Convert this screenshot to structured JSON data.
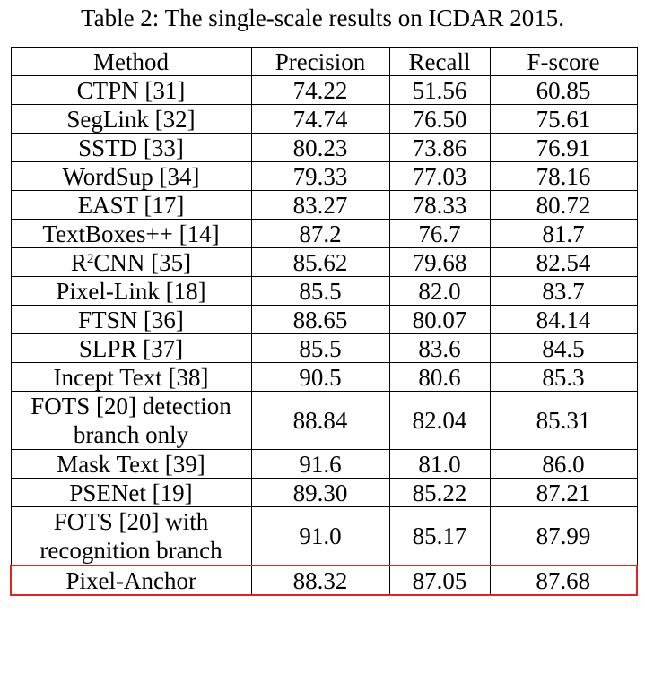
{
  "chart_data": {
    "type": "table",
    "title": "Table 2: The single-scale results on ICDAR 2015.",
    "columns": [
      "Method",
      "Precision",
      "Recall",
      "F-score"
    ],
    "rows": [
      {
        "method": "CTPN [31]",
        "precision": "74.22",
        "recall": "51.56",
        "fscore": "60.85"
      },
      {
        "method": "SegLink [32]",
        "precision": "74.74",
        "recall": "76.50",
        "fscore": "75.61"
      },
      {
        "method": "SSTD [33]",
        "precision": "80.23",
        "recall": "73.86",
        "fscore": "76.91"
      },
      {
        "method": "WordSup [34]",
        "precision": "79.33",
        "recall": "77.03",
        "fscore": "78.16"
      },
      {
        "method": "EAST [17]",
        "precision": "83.27",
        "recall": "78.33",
        "fscore": "80.72"
      },
      {
        "method": "TextBoxes++ [14]",
        "precision": "87.2",
        "recall": "76.7",
        "fscore": "81.7"
      },
      {
        "method_prefix": "R",
        "method_sup": "2",
        "method_suffix": "CNN [35]",
        "precision": "85.62",
        "recall": "79.68",
        "fscore": "82.54"
      },
      {
        "method": "Pixel-Link [18]",
        "precision": "85.5",
        "recall": "82.0",
        "fscore": "83.7"
      },
      {
        "method": "FTSN [36]",
        "precision": "88.65",
        "recall": "80.07",
        "fscore": "84.14"
      },
      {
        "method": "SLPR [37]",
        "precision": "85.5",
        "recall": "83.6",
        "fscore": "84.5"
      },
      {
        "method": "Incept Text [38]",
        "precision": "90.5",
        "recall": "80.6",
        "fscore": "85.3"
      },
      {
        "method_line1": "FOTS [20] detection",
        "method_line2": "branch only",
        "precision": "88.84",
        "recall": "82.04",
        "fscore": "85.31"
      },
      {
        "method": "Mask Text [39]",
        "precision": "91.6",
        "recall": "81.0",
        "fscore": "86.0"
      },
      {
        "method": "PSENet [19]",
        "precision": "89.30",
        "recall": "85.22",
        "fscore": "87.21"
      },
      {
        "method_line1": "FOTS [20] with",
        "method_line2": "recognition branch",
        "precision": "91.0",
        "recall": "85.17",
        "fscore": "87.99"
      },
      {
        "method": "Pixel-Anchor",
        "precision": "88.32",
        "recall": "87.05",
        "fscore": "87.68",
        "highlighted": true
      }
    ],
    "highlight_color": "#e02424"
  }
}
